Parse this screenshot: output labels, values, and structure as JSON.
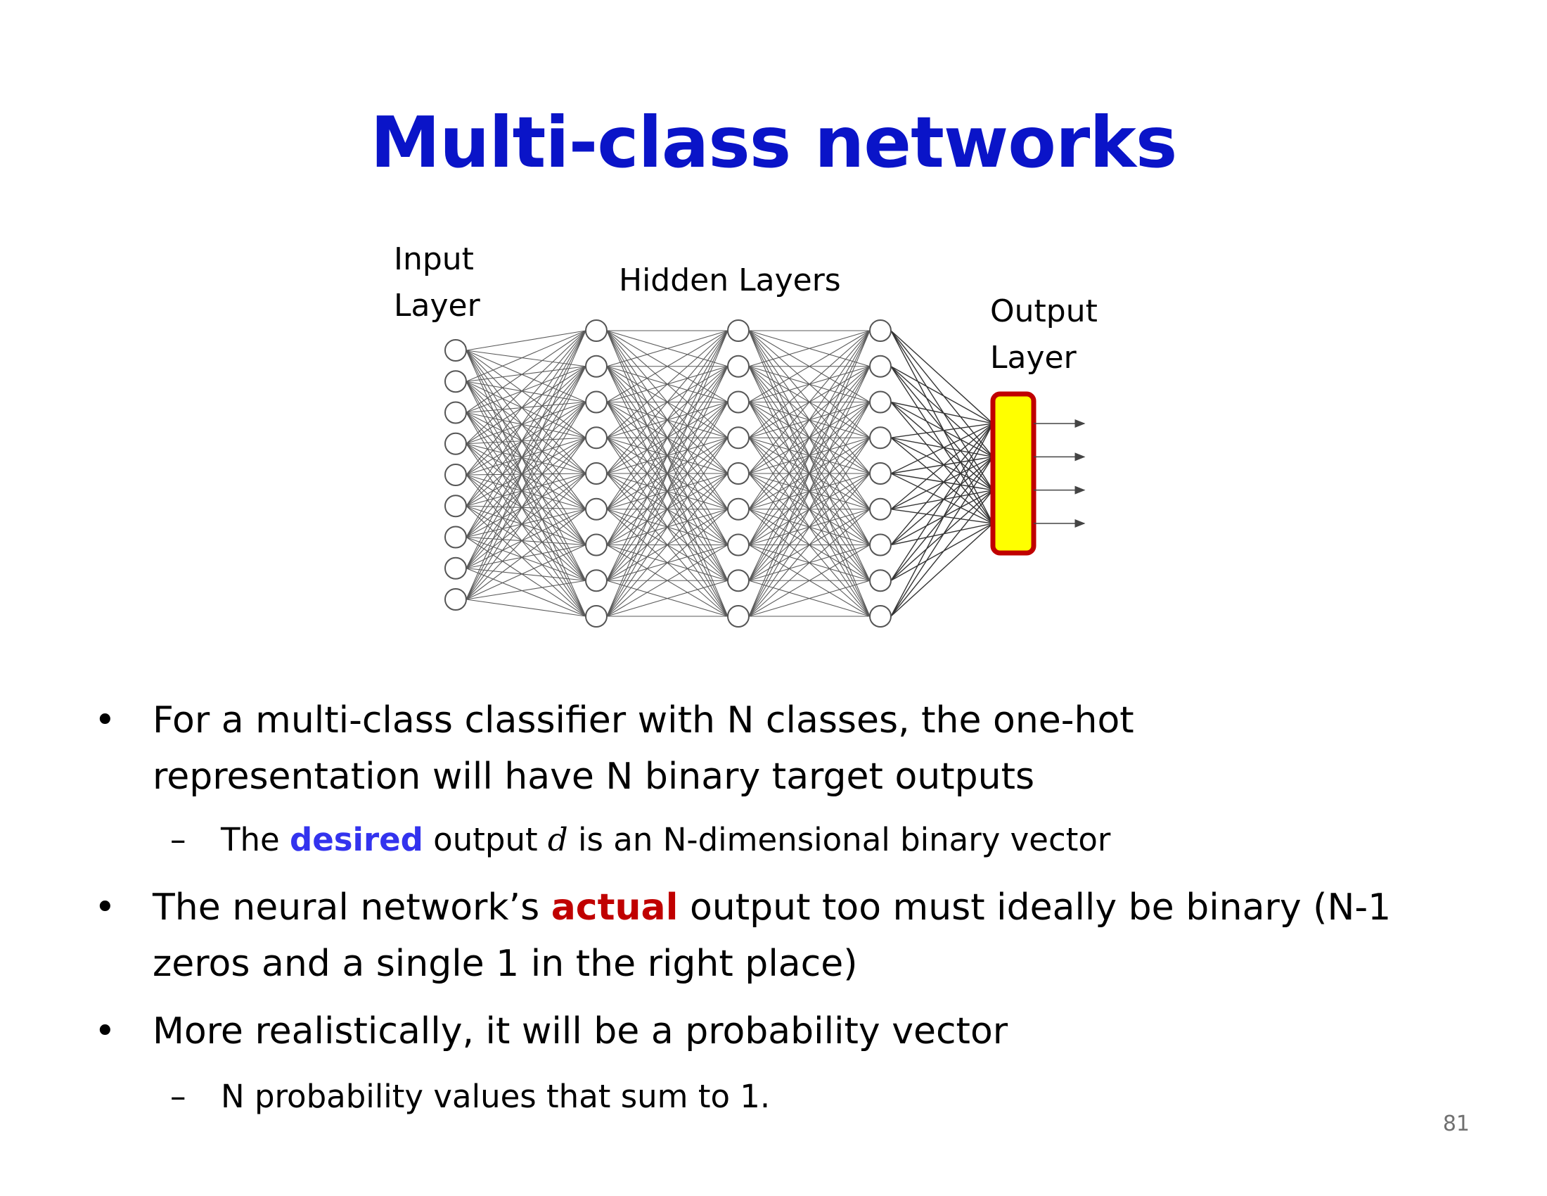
{
  "slide": {
    "title": "Multi-class networks",
    "page_number": "81"
  },
  "diagram": {
    "labels": {
      "input_line1": "Input",
      "input_line2": "Layer",
      "hidden": "Hidden Layers",
      "output_line1": "Output",
      "output_line2": "Layer"
    },
    "input_nodes": 9,
    "hidden_layers": 3,
    "hidden_nodes_per_layer": 9,
    "output_arrows": 4,
    "colors": {
      "output_fill": "#ffff00",
      "output_border": "#c00000"
    }
  },
  "bullets": {
    "b1": {
      "line1": "For a multi-class classifier with N classes, the one-hot",
      "line2": "representation will have N binary target outputs",
      "sub": {
        "pre": "The ",
        "keyword": "desired",
        "mid": " output ",
        "var": "d",
        "post": " is an N-dimensional binary vector"
      }
    },
    "b2": {
      "pre": "The neural network’s ",
      "keyword": "actual",
      "post": " output too must ideally be binary (N-1",
      "line2": "zeros and a single 1 in the right place)"
    },
    "b3": {
      "line1": "More realistically, it will be a probability vector",
      "sub": "N probability values that sum to 1."
    },
    "bullet_glyph": "•",
    "dash_glyph": "–",
    "keyword_colors": {
      "desired": "#3333ee",
      "actual": "#c00000"
    }
  }
}
